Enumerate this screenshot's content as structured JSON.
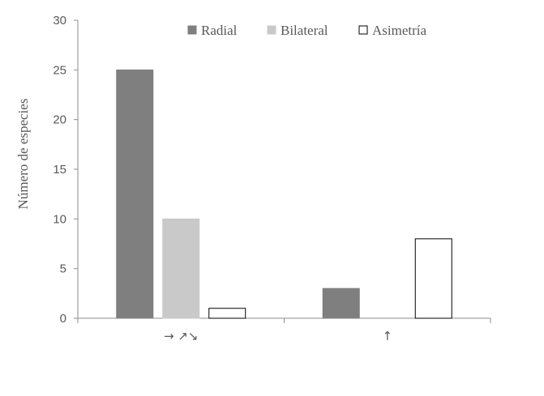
{
  "chart_data": {
    "type": "bar",
    "categories": [
      "→ ↗↘",
      "↑"
    ],
    "series": [
      {
        "name": "Radial",
        "values": [
          25,
          3
        ],
        "color": "#7f7f7f",
        "stroke": "#7f7f7f"
      },
      {
        "name": "Bilateral",
        "values": [
          10,
          0
        ],
        "color": "#c9c9c9",
        "stroke": "#c9c9c9"
      },
      {
        "name": "Asimetría",
        "values": [
          1,
          8
        ],
        "color": "#ffffff",
        "stroke": "#000000"
      }
    ],
    "ylabel": "Número de especies",
    "xlabel": "",
    "ylim": [
      0,
      30
    ],
    "yticks": [
      0,
      5,
      10,
      15,
      20,
      25,
      30
    ],
    "grid": false,
    "legend_position": "top"
  }
}
